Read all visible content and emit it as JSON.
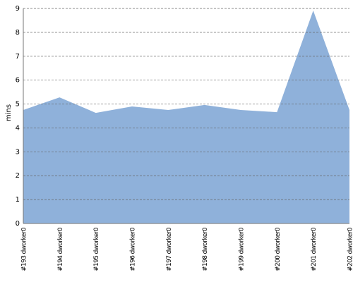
{
  "chart_data": {
    "type": "area",
    "y_label": "mins",
    "categories": [
      "#193 dworker0",
      "#194 dworker0",
      "#195 dworker0",
      "#196 dworker0",
      "#197 dworker0",
      "#198 dworker0",
      "#199 dworker0",
      "#200 dworker0",
      "#201 dworker0",
      "#202 dworker0"
    ],
    "values": [
      4.75,
      5.28,
      4.63,
      4.9,
      4.75,
      4.96,
      4.75,
      4.66,
      8.91,
      4.75
    ],
    "color": "#8fb1da",
    "ylim": [
      0,
      9
    ],
    "yticks": [
      0,
      1,
      2,
      3,
      4,
      5,
      6,
      7,
      8,
      9
    ],
    "grid": true
  }
}
